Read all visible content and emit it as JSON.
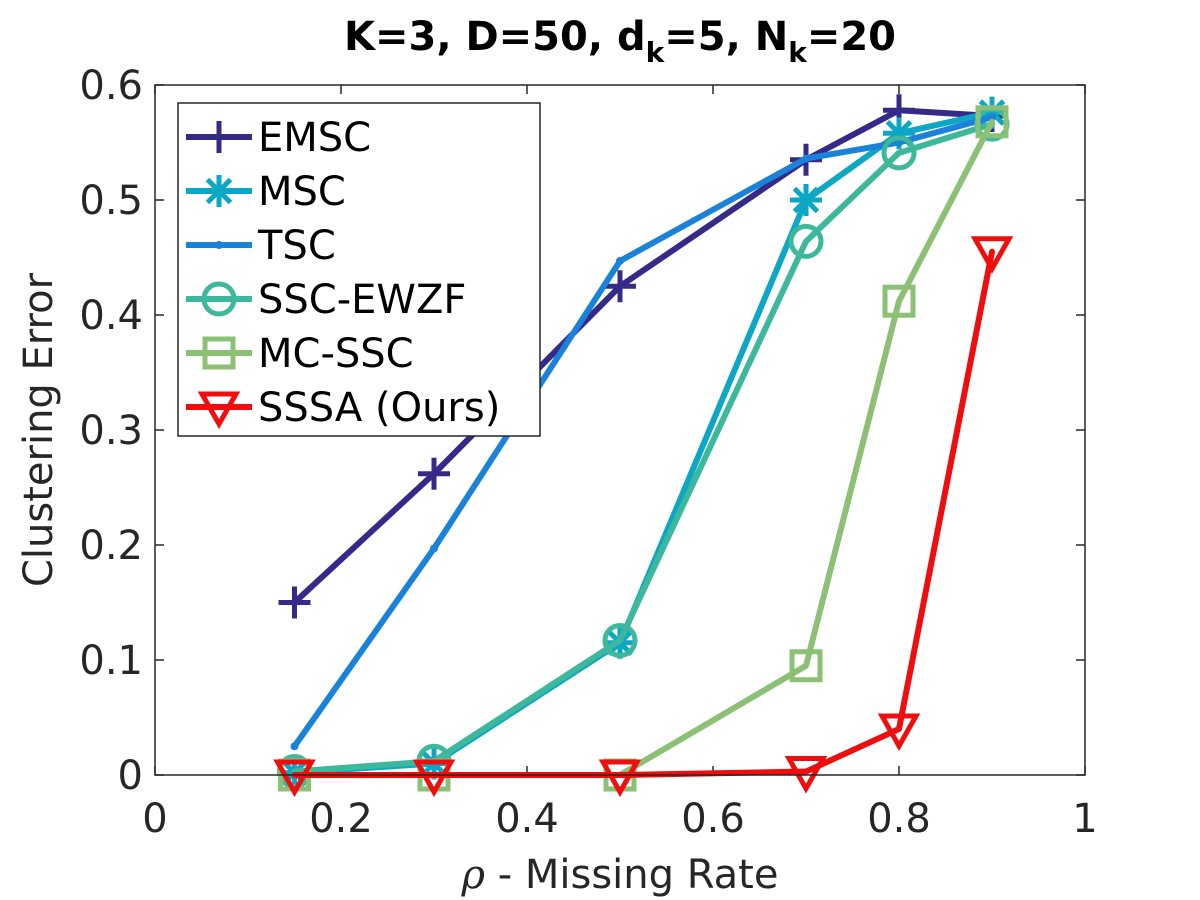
{
  "chart_data": {
    "type": "line",
    "title": {
      "prefix": "K=3, D=50, d",
      "sub1": "k",
      "mid": "=5, N",
      "sub2": "k",
      "suffix": "=20"
    },
    "xlabel": {
      "symbol": "ρ",
      "text": " - Missing Rate"
    },
    "ylabel": "Clustering Error",
    "xlim": [
      0,
      1
    ],
    "ylim": [
      0,
      0.6
    ],
    "xticks": [
      {
        "value": 0,
        "label": "0"
      },
      {
        "value": 0.2,
        "label": "0.2"
      },
      {
        "value": 0.4,
        "label": "0.4"
      },
      {
        "value": 0.6,
        "label": "0.6"
      },
      {
        "value": 0.8,
        "label": "0.8"
      },
      {
        "value": 1,
        "label": "1"
      }
    ],
    "yticks": [
      {
        "value": 0,
        "label": "0"
      },
      {
        "value": 0.1,
        "label": "0.1"
      },
      {
        "value": 0.2,
        "label": "0.2"
      },
      {
        "value": 0.3,
        "label": "0.3"
      },
      {
        "value": 0.4,
        "label": "0.4"
      },
      {
        "value": 0.5,
        "label": "0.5"
      },
      {
        "value": 0.6,
        "label": "0.6"
      }
    ],
    "x": [
      0.15,
      0.3,
      0.5,
      0.7,
      0.8,
      0.9
    ],
    "legend_position": "top-left",
    "series": [
      {
        "name": "EMSC",
        "color": "#352a87",
        "marker": "plus",
        "values": [
          0.15,
          0.262,
          0.425,
          0.535,
          0.578,
          0.573
        ]
      },
      {
        "name": "MSC",
        "color": "#0ba7c5",
        "marker": "asterisk",
        "values": [
          0.002,
          0.01,
          0.115,
          0.5,
          0.558,
          0.576
        ]
      },
      {
        "name": "TSC",
        "color": "#1a82d9",
        "marker": "point",
        "values": [
          0.025,
          0.197,
          0.447,
          0.536,
          0.55,
          0.572
        ]
      },
      {
        "name": "SSC-EWZF",
        "color": "#3db89c",
        "marker": "circle",
        "values": [
          0.003,
          0.012,
          0.117,
          0.464,
          0.541,
          0.566
        ]
      },
      {
        "name": "MC-SSC",
        "color": "#8cc075",
        "marker": "square",
        "values": [
          0.0,
          0.0,
          0.0,
          0.095,
          0.412,
          0.568
        ]
      },
      {
        "name": "SSSA (Ours)",
        "color": "#ef0e0e",
        "marker": "triangle-down",
        "values": [
          0.0,
          0.0,
          0.0,
          0.003,
          0.04,
          0.455
        ]
      }
    ]
  }
}
